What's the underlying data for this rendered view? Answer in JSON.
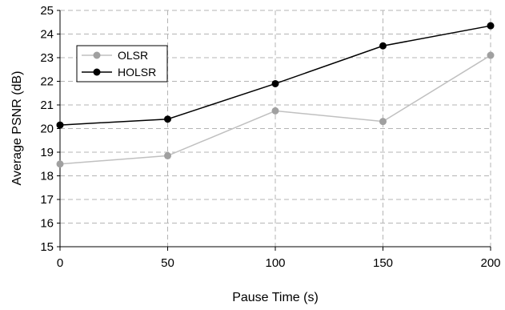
{
  "chart_data": {
    "type": "line",
    "xlabel": "Pause Time (s)",
    "ylabel": "Average PSNR (dB)",
    "x": [
      0,
      50,
      100,
      150,
      200
    ],
    "xlim": [
      0,
      200
    ],
    "ylim": [
      15,
      25
    ],
    "xticks": [
      "0",
      "50",
      "100",
      "150",
      "200"
    ],
    "yticks": [
      "15",
      "16",
      "17",
      "18",
      "19",
      "20",
      "21",
      "22",
      "23",
      "24",
      "25"
    ],
    "grid": true,
    "legend_position": "upper-left",
    "series": [
      {
        "name": "OLSR",
        "values": [
          18.5,
          18.85,
          20.75,
          20.3,
          23.1
        ],
        "color": "#a0a0a0",
        "line_color": "#c0c0c0"
      },
      {
        "name": "HOLSR",
        "values": [
          20.15,
          20.4,
          21.9,
          23.5,
          24.35
        ],
        "color": "#000000",
        "line_color": "#000000"
      }
    ]
  }
}
